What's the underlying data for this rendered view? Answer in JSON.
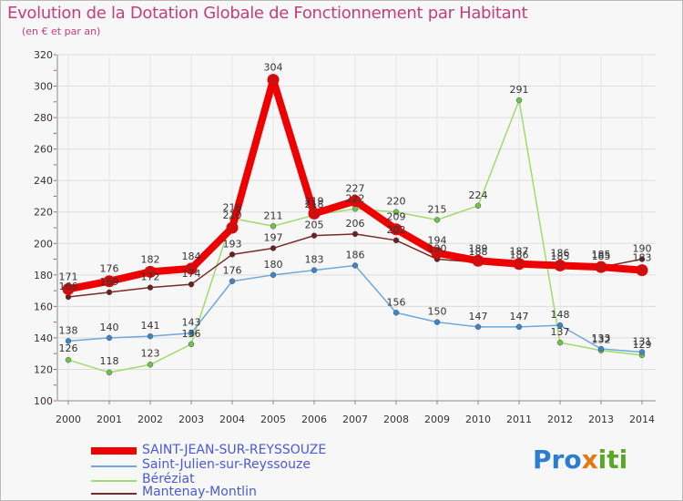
{
  "title": "Evolution de la Dotation Globale de Fonctionnement par Habitant",
  "subtitle": "(en € et par an)",
  "logo_text": "Proxiti",
  "chart_data": {
    "type": "line",
    "x": [
      "2000",
      "2001",
      "2002",
      "2003",
      "2004",
      "2005",
      "2006",
      "2007",
      "2008",
      "2009",
      "2010",
      "2011",
      "2012",
      "2013",
      "2014"
    ],
    "ylim": [
      100,
      320
    ],
    "yticks": [
      100,
      120,
      140,
      160,
      180,
      200,
      220,
      240,
      260,
      280,
      300,
      320
    ],
    "grid": true,
    "legend_position": "bottom-left",
    "series": [
      {
        "name": "SAINT-JEAN-SUR-REYSSOUZE",
        "color": "#ee0000",
        "width": 8,
        "marker": "#cc1010",
        "values": [
          171,
          176,
          182,
          184,
          210,
          304,
          219,
          227,
          209,
          194,
          189,
          187,
          186,
          185,
          183
        ]
      },
      {
        "name": "Saint-Julien-sur-Reyssouze",
        "color": "#6fa8dc",
        "width": 1.5,
        "marker": "#3d85c6",
        "values": [
          138,
          140,
          141,
          143,
          176,
          180,
          183,
          186,
          156,
          150,
          147,
          147,
          148,
          133,
          131
        ]
      },
      {
        "name": "Béréziat",
        "color": "#9fdc6c",
        "width": 1.5,
        "marker": "#6cc24a",
        "values": [
          126,
          118,
          123,
          136,
          216,
          211,
          218,
          222,
          220,
          215,
          224,
          291,
          137,
          132,
          129
        ]
      },
      {
        "name": "Mantenay-Montlin",
        "color": "#7a2a2a",
        "width": 1.5,
        "marker": "#6b1f1f",
        "values": [
          166,
          169,
          172,
          174,
          193,
          197,
          205,
          206,
          202,
          190,
          188,
          186,
          185,
          185,
          190
        ]
      }
    ],
    "labels": [
      {
        "series": 0,
        "values": [
          "171",
          "176",
          "182",
          "184",
          "210",
          "304",
          "219",
          "227",
          "209",
          "194",
          "189",
          "187",
          "186",
          "185",
          "183"
        ]
      },
      {
        "series": 1,
        "values": [
          "138",
          "140",
          "141",
          "143",
          "176",
          "180",
          "183",
          "186",
          "156",
          "150",
          "147",
          "147",
          "148",
          "133",
          "131"
        ]
      },
      {
        "series": 2,
        "values": [
          "126",
          "118",
          "123",
          "136",
          "216",
          "211",
          "218",
          "222",
          "220",
          "215",
          "224",
          "291",
          "137",
          "132",
          "129"
        ]
      },
      {
        "series": 3,
        "values": [
          "166",
          "169",
          "172",
          "174",
          "193",
          "197",
          "205",
          "206",
          "202",
          "190",
          "188",
          "186",
          "185",
          "185",
          "190"
        ]
      }
    ]
  }
}
